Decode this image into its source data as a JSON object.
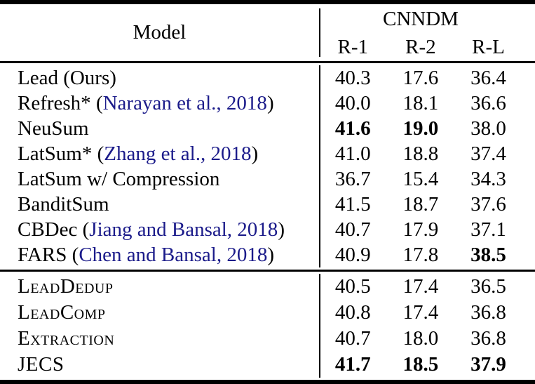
{
  "table": {
    "header": {
      "model": "Model",
      "dataset": "CNNDM",
      "metrics": [
        "R-1",
        "R-2",
        "R-L"
      ]
    },
    "sections": [
      {
        "rows": [
          {
            "name": "Lead (Ours)",
            "citation": null,
            "smallcaps": false,
            "values": [
              "40.3",
              "17.6",
              "36.4"
            ],
            "bold": [
              false,
              false,
              false
            ]
          },
          {
            "name": "Refresh*",
            "citation": "Narayan et al., 2018",
            "smallcaps": false,
            "values": [
              "40.0",
              "18.1",
              "36.6"
            ],
            "bold": [
              false,
              false,
              false
            ]
          },
          {
            "name": "NeuSum",
            "citation": null,
            "smallcaps": false,
            "values": [
              "41.6",
              "19.0",
              "38.0"
            ],
            "bold": [
              true,
              true,
              false
            ]
          },
          {
            "name": "LatSum*",
            "citation": "Zhang et al., 2018",
            "smallcaps": false,
            "values": [
              "41.0",
              "18.8",
              "37.4"
            ],
            "bold": [
              false,
              false,
              false
            ]
          },
          {
            "name": "LatSum w/ Compression",
            "citation": null,
            "smallcaps": false,
            "values": [
              "36.7",
              "15.4",
              "34.3"
            ],
            "bold": [
              false,
              false,
              false
            ]
          },
          {
            "name": "BanditSum",
            "citation": null,
            "smallcaps": false,
            "values": [
              "41.5",
              "18.7",
              "37.6"
            ],
            "bold": [
              false,
              false,
              false
            ]
          },
          {
            "name": "CBDec",
            "citation": "Jiang and Bansal, 2018",
            "smallcaps": false,
            "values": [
              "40.7",
              "17.9",
              "37.1"
            ],
            "bold": [
              false,
              false,
              false
            ]
          },
          {
            "name": "FARS",
            "citation": "Chen and Bansal, 2018",
            "smallcaps": false,
            "values": [
              "40.9",
              "17.8",
              "38.5"
            ],
            "bold": [
              false,
              false,
              true
            ]
          }
        ]
      },
      {
        "rows": [
          {
            "name": "LeadDedup",
            "citation": null,
            "smallcaps": true,
            "values": [
              "40.5",
              "17.4",
              "36.5"
            ],
            "bold": [
              false,
              false,
              false
            ]
          },
          {
            "name": "LeadComp",
            "citation": null,
            "smallcaps": true,
            "values": [
              "40.8",
              "17.4",
              "36.8"
            ],
            "bold": [
              false,
              false,
              false
            ]
          },
          {
            "name": "Extraction",
            "citation": null,
            "smallcaps": true,
            "values": [
              "40.7",
              "18.0",
              "36.8"
            ],
            "bold": [
              false,
              false,
              false
            ]
          },
          {
            "name": "JECS",
            "citation": null,
            "smallcaps": true,
            "values": [
              "41.7",
              "18.5",
              "37.9"
            ],
            "bold": [
              true,
              true,
              true
            ]
          }
        ]
      }
    ],
    "colors": {
      "citation_link": "#1b1b8a",
      "text": "#000000",
      "rule": "#000000"
    }
  }
}
